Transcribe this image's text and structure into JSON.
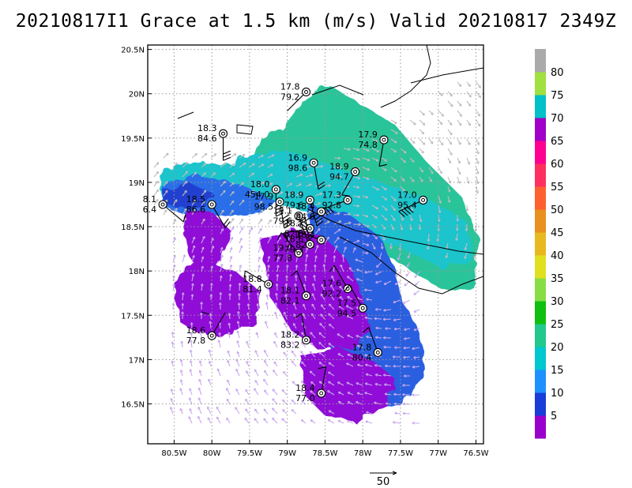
{
  "title": "20210817I1 Grace at 1.5 km (m/s) Valid 20210817 2349Z",
  "chart_data": {
    "type": "map",
    "lon_range": [
      -80.85,
      -76.4
    ],
    "lat_range": [
      16.05,
      20.55
    ],
    "x_ticks": [
      {
        "lon": -80.5,
        "label": "80.5W"
      },
      {
        "lon": -80.0,
        "label": "80W"
      },
      {
        "lon": -79.5,
        "label": "79.5W"
      },
      {
        "lon": -79.0,
        "label": "79W"
      },
      {
        "lon": -78.5,
        "label": "78.5W"
      },
      {
        "lon": -78.0,
        "label": "78W"
      },
      {
        "lon": -77.5,
        "label": "77.5W"
      },
      {
        "lon": -77.0,
        "label": "77W"
      },
      {
        "lon": -76.5,
        "label": "76.5W"
      }
    ],
    "y_ticks": [
      {
        "lat": 16.5,
        "label": "16.5N"
      },
      {
        "lat": 17.0,
        "label": "17N"
      },
      {
        "lat": 17.5,
        "label": "17.5N"
      },
      {
        "lat": 18.0,
        "label": "18N"
      },
      {
        "lat": 18.5,
        "label": "18.5N"
      },
      {
        "lat": 19.0,
        "label": "19N"
      },
      {
        "lat": 19.5,
        "label": "19.5N"
      },
      {
        "lat": 20.0,
        "label": "20N"
      },
      {
        "lat": 20.5,
        "label": "20.5N"
      }
    ],
    "colorbar": {
      "labels": [
        "5",
        "10",
        "15",
        "20",
        "25",
        "30",
        "35",
        "40",
        "45",
        "50",
        "55",
        "60",
        "65",
        "70",
        "75",
        "80"
      ],
      "colors": [
        "#9900cc",
        "#1a3cd8",
        "#1e90ff",
        "#00c8d0",
        "#22c88c",
        "#10c010",
        "#88dd44",
        "#e0e020",
        "#e8b820",
        "#e89020",
        "#ff6030",
        "#ff3060",
        "#ff0090",
        "#a000c8",
        "#00c0c8",
        "#a0e040",
        "#aaaaaa"
      ]
    },
    "reference_vector": {
      "value": "50"
    },
    "observations": [
      {
        "lon": -78.75,
        "lat": 20.02,
        "wind": "17.8",
        "pres": "79.2",
        "dir": 135,
        "flags": 0
      },
      {
        "lon": -79.85,
        "lat": 19.55,
        "wind": "18.3",
        "pres": "84.6",
        "dir": 90,
        "flags": 3
      },
      {
        "lon": -77.72,
        "lat": 19.48,
        "wind": "17.9",
        "pres": "74.8",
        "dir": 100,
        "flags": 1
      },
      {
        "lon": -78.65,
        "lat": 19.22,
        "wind": "16.9",
        "pres": "98.6",
        "dir": 80,
        "flags": 2
      },
      {
        "lon": -78.1,
        "lat": 19.12,
        "wind": "18.9",
        "pres": "94.7",
        "dir": 120,
        "flags": 1
      },
      {
        "lon": -79.15,
        "lat": 18.92,
        "wind": "18.0",
        "pres": "454.0",
        "dir": 90,
        "flags": 4
      },
      {
        "lon": -79.1,
        "lat": 18.78,
        "wind": "17.9",
        "pres": "98.5",
        "dir": 80,
        "flags": 4
      },
      {
        "lon": -78.7,
        "lat": 18.8,
        "wind": "18.9",
        "pres": "79.6",
        "dir": 75,
        "flags": 3
      },
      {
        "lon": -78.2,
        "lat": 18.8,
        "wind": "17.3",
        "pres": "92.8",
        "dir": 160,
        "flags": 3
      },
      {
        "lon": -77.2,
        "lat": 18.8,
        "wind": "17.0",
        "pres": "95.4",
        "dir": 155,
        "flags": 4
      },
      {
        "lon": -80.0,
        "lat": 18.75,
        "wind": "18.5",
        "pres": "86.6",
        "dir": 60,
        "flags": 2
      },
      {
        "lon": -80.65,
        "lat": 18.75,
        "wind": "8.1",
        "pres": "6.4",
        "dir": 40,
        "flags": 1
      },
      {
        "lon": -78.85,
        "lat": 18.62,
        "wind": "19.1",
        "pres": "79.6",
        "dir": 70,
        "flags": 2
      },
      {
        "lon": -78.55,
        "lat": 18.67,
        "wind": "18.4",
        "pres": "84.6",
        "dir": 150,
        "flags": 3
      },
      {
        "lon": -78.7,
        "lat": 18.48,
        "wind": "18.7",
        "pres": "82.8",
        "dir": 170,
        "flags": 2
      },
      {
        "lon": -78.55,
        "lat": 18.35,
        "wind": "18.4",
        "pres": "82.4",
        "dir": 200,
        "flags": 2
      },
      {
        "lon": -78.85,
        "lat": 18.2,
        "wind": "19.0",
        "pres": "77.8",
        "dir": 230,
        "flags": 1
      },
      {
        "lon": -78.7,
        "lat": 18.3,
        "wind": "18.6",
        "pres": "79.3",
        "dir": 260,
        "flags": 1
      },
      {
        "lon": -79.25,
        "lat": 17.85,
        "wind": "18.8",
        "pres": "81.4",
        "dir": 210,
        "flags": 1
      },
      {
        "lon": -78.2,
        "lat": 17.8,
        "wind": "17.6",
        "pres": "92.2",
        "dir": 240,
        "flags": 1
      },
      {
        "lon": -78.75,
        "lat": 17.72,
        "wind": "18.1",
        "pres": "82.1",
        "dir": 250,
        "flags": 1
      },
      {
        "lon": -78.0,
        "lat": 17.58,
        "wind": "17.5",
        "pres": "94.5",
        "dir": 240,
        "flags": 1
      },
      {
        "lon": -80.0,
        "lat": 17.27,
        "wind": "18.6",
        "pres": "77.8",
        "dir": 300,
        "flags": 0
      },
      {
        "lon": -78.75,
        "lat": 17.22,
        "wind": "18.2",
        "pres": "83.2",
        "dir": 260,
        "flags": 1
      },
      {
        "lon": -77.8,
        "lat": 17.08,
        "wind": "17.8",
        "pres": "80.4",
        "dir": 250,
        "flags": 1
      },
      {
        "lon": -78.55,
        "lat": 16.62,
        "wind": "18.4",
        "pres": "77.0",
        "dir": 280,
        "flags": 1
      }
    ]
  }
}
